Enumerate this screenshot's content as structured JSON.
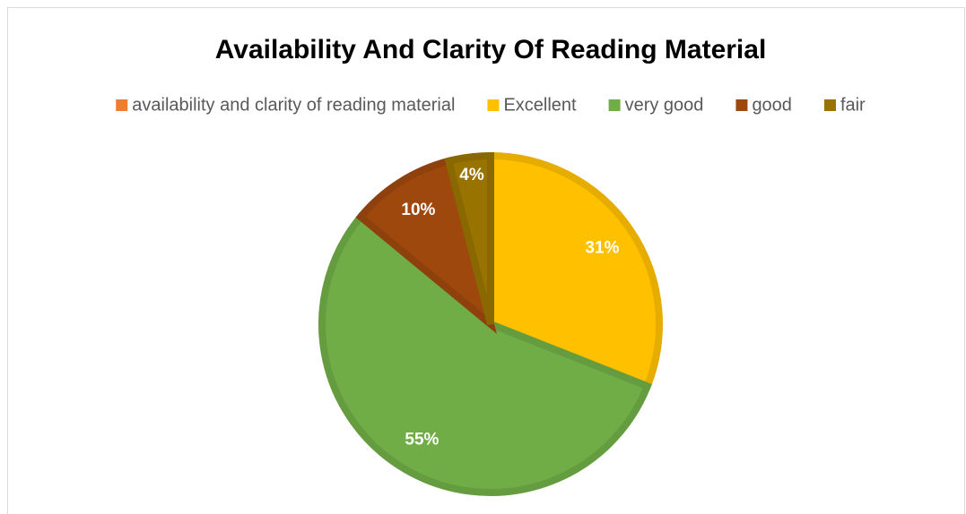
{
  "chart_data": {
    "type": "pie",
    "title": "Availability And Clarity Of Reading Material",
    "categories": [
      "availability and clarity of reading material",
      "Excellent",
      "very good",
      "good",
      "fair"
    ],
    "values": [
      null,
      31,
      55,
      10,
      4
    ],
    "value_labels": [
      null,
      "31%",
      "55%",
      "10%",
      "4%"
    ],
    "colors": [
      "#ED7D31",
      "#FFC000",
      "#70AD47",
      "#9E480E",
      "#997300"
    ],
    "legend": "top"
  }
}
